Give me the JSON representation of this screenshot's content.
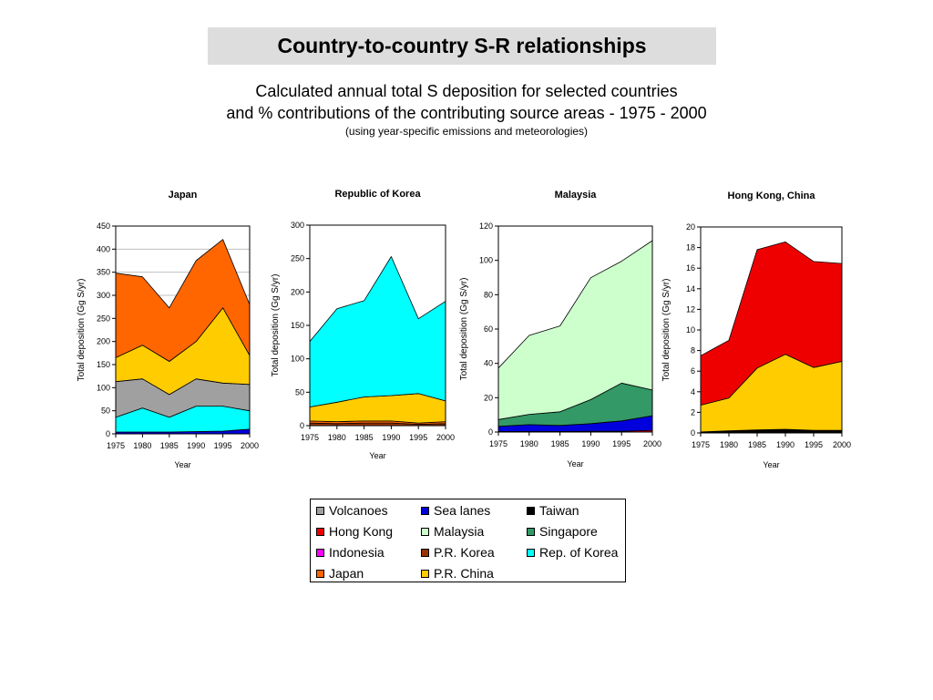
{
  "header": {
    "title": "Country-to-country S-R relationships",
    "subtitle_line1": "Calculated annual total S deposition for selected countries",
    "subtitle_line2": "and % contributions of the contributing source areas - 1975 - 2000",
    "note": "(using year-specific emissions and meteorologies)"
  },
  "colors": {
    "Volcanoes": "#a0a0a0",
    "Sea lanes": "#0000dd",
    "Taiwan": "#000000",
    "Hong Kong": "#ee0000",
    "Malaysia": "#ccffcc",
    "Singapore": "#339966",
    "Indonesia": "#ff00ff",
    "P.R. Korea": "#993300",
    "Rep. of Korea": "#00ffff",
    "Japan": "#ff6600",
    "P.R. China": "#ffcc00"
  },
  "legend": {
    "items": [
      "Volcanoes",
      "Sea lanes",
      "Taiwan",
      "Hong Kong",
      "Malaysia",
      "Singapore",
      "Indonesia",
      "P.R. Korea",
      "Rep. of Korea",
      "Japan",
      "P.R. China"
    ]
  },
  "chart_data": [
    {
      "type": "area",
      "stacked": true,
      "title": "Japan",
      "xlabel": "Year",
      "ylabel": "Total deposition (Gg S/yr)",
      "x": [
        "1975",
        "1980",
        "1985",
        "1990",
        "1995",
        "2000"
      ],
      "ylim": [
        0,
        450
      ],
      "yticks": [
        0,
        50,
        100,
        150,
        200,
        250,
        300,
        350,
        400,
        450
      ],
      "grid": true,
      "series": [
        {
          "name": "Sea lanes",
          "values": [
            4,
            4,
            4,
            5,
            6,
            10
          ]
        },
        {
          "name": "Rep. of Korea",
          "values": [
            32,
            52,
            32,
            55,
            54,
            40
          ]
        },
        {
          "name": "Volcanoes",
          "values": [
            77,
            63,
            49,
            59,
            50,
            57
          ]
        },
        {
          "name": "P.R. China",
          "values": [
            52,
            73,
            72,
            81,
            163,
            63
          ]
        },
        {
          "name": "Japan",
          "values": [
            183,
            148,
            116,
            175,
            148,
            110
          ]
        }
      ]
    },
    {
      "type": "area",
      "stacked": true,
      "title": "Republic of Korea",
      "xlabel": "Year",
      "ylabel": "Total deposition (Gg S/yr)",
      "x": [
        "1975",
        "1980",
        "1985",
        "1990",
        "1995",
        "2000"
      ],
      "ylim": [
        0,
        300
      ],
      "yticks": [
        0,
        50,
        100,
        150,
        200,
        250,
        300
      ],
      "grid": false,
      "series": [
        {
          "name": "P.R. Korea",
          "values": [
            4,
            3,
            4,
            4,
            2,
            3
          ]
        },
        {
          "name": "Japan",
          "values": [
            3,
            3,
            3,
            3,
            2,
            3
          ]
        },
        {
          "name": "P.R. China",
          "values": [
            21,
            29,
            36,
            38,
            44,
            31
          ]
        },
        {
          "name": "Rep. of Korea",
          "values": [
            98,
            140,
            144,
            208,
            112,
            149
          ]
        }
      ]
    },
    {
      "type": "area",
      "stacked": true,
      "title": "Malaysia",
      "xlabel": "Year",
      "ylabel": "Total deposition (Gg S/yr)",
      "x": [
        "1975",
        "1980",
        "1985",
        "1990",
        "1995",
        "2000"
      ],
      "ylim": [
        0,
        120
      ],
      "yticks": [
        0,
        20,
        40,
        60,
        80,
        100,
        120
      ],
      "grid": false,
      "series": [
        {
          "name": "Hong Kong",
          "values": [
            0.3,
            0.3,
            0.3,
            0.4,
            0.5,
            1
          ]
        },
        {
          "name": "Sea lanes",
          "values": [
            3,
            4,
            3.5,
            4.5,
            6,
            8.5
          ]
        },
        {
          "name": "Singapore",
          "values": [
            4,
            6,
            8,
            14,
            22,
            15
          ]
        },
        {
          "name": "Malaysia",
          "values": [
            30,
            46,
            50,
            71,
            71,
            87
          ]
        }
      ]
    },
    {
      "type": "area",
      "stacked": true,
      "title": "Hong Kong, China",
      "xlabel": "Year",
      "ylabel": "Total deposition (Gg S/yr)",
      "x": [
        "1975",
        "1980",
        "1985",
        "1990",
        "1995",
        "2000"
      ],
      "ylim": [
        0,
        20
      ],
      "yticks": [
        0,
        2,
        4,
        6,
        8,
        10,
        12,
        14,
        16,
        18,
        20
      ],
      "grid": false,
      "series": [
        {
          "name": "Taiwan",
          "values": [
            0.1,
            0.2,
            0.3,
            0.35,
            0.25,
            0.25
          ]
        },
        {
          "name": "P.R. China",
          "values": [
            2.6,
            3.2,
            6,
            7.3,
            6.1,
            6.7
          ]
        },
        {
          "name": "Hong Kong",
          "values": [
            4.8,
            5.6,
            11.5,
            10.9,
            10.3,
            9.5
          ]
        }
      ]
    }
  ]
}
